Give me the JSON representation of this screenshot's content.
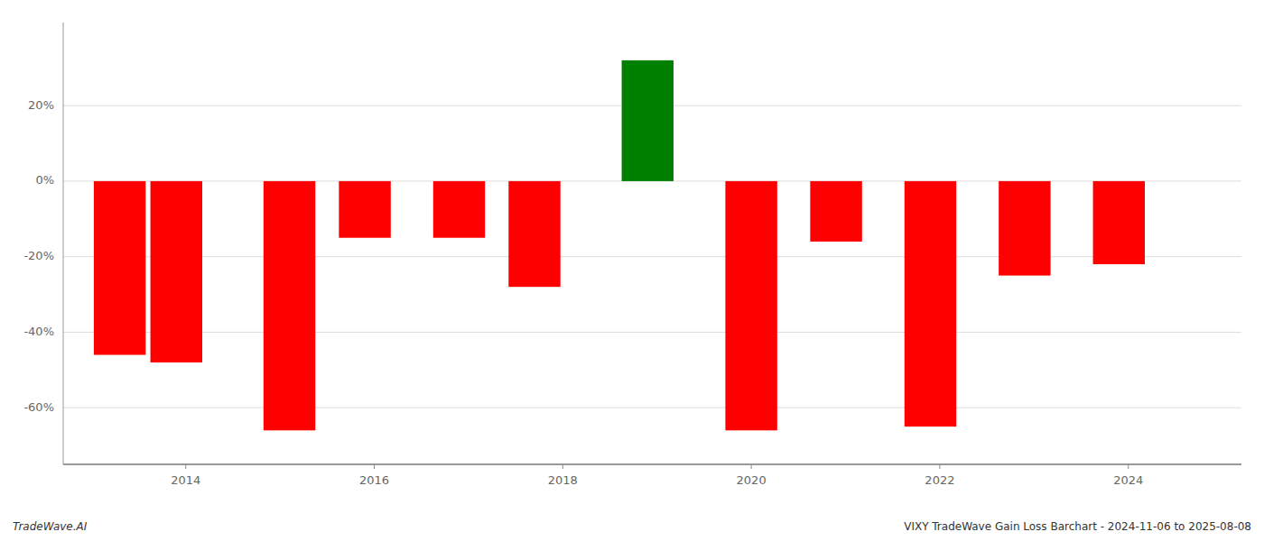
{
  "chart_data": {
    "type": "bar",
    "x": [
      2013.3,
      2013.9,
      2015.1,
      2015.9,
      2016.9,
      2017.7,
      2018.9,
      2020.0,
      2020.9,
      2021.9,
      2022.9,
      2023.9
    ],
    "values": [
      -46,
      -48,
      -66,
      -15,
      -15,
      -28,
      32,
      -66,
      -16,
      -65,
      -25,
      -22
    ],
    "colors": [
      "red",
      "red",
      "red",
      "red",
      "red",
      "red",
      "green",
      "red",
      "red",
      "red",
      "red",
      "red"
    ],
    "xlim": [
      2012.7,
      2025.2
    ],
    "ylim": [
      -75,
      42
    ],
    "xticks": [
      2014,
      2016,
      2018,
      2020,
      2022,
      2024
    ],
    "yticks": [
      {
        "value": -60,
        "label": "-60%"
      },
      {
        "value": -40,
        "label": "-40%"
      },
      {
        "value": -20,
        "label": "-20%"
      },
      {
        "value": 0,
        "label": "0%"
      },
      {
        "value": 20,
        "label": "20%"
      }
    ],
    "grid": true,
    "annotations": [
      "TradeWave.AI",
      "VIXY TradeWave Gain Loss Barchart - 2024-11-06 to 2025-08-08"
    ]
  }
}
